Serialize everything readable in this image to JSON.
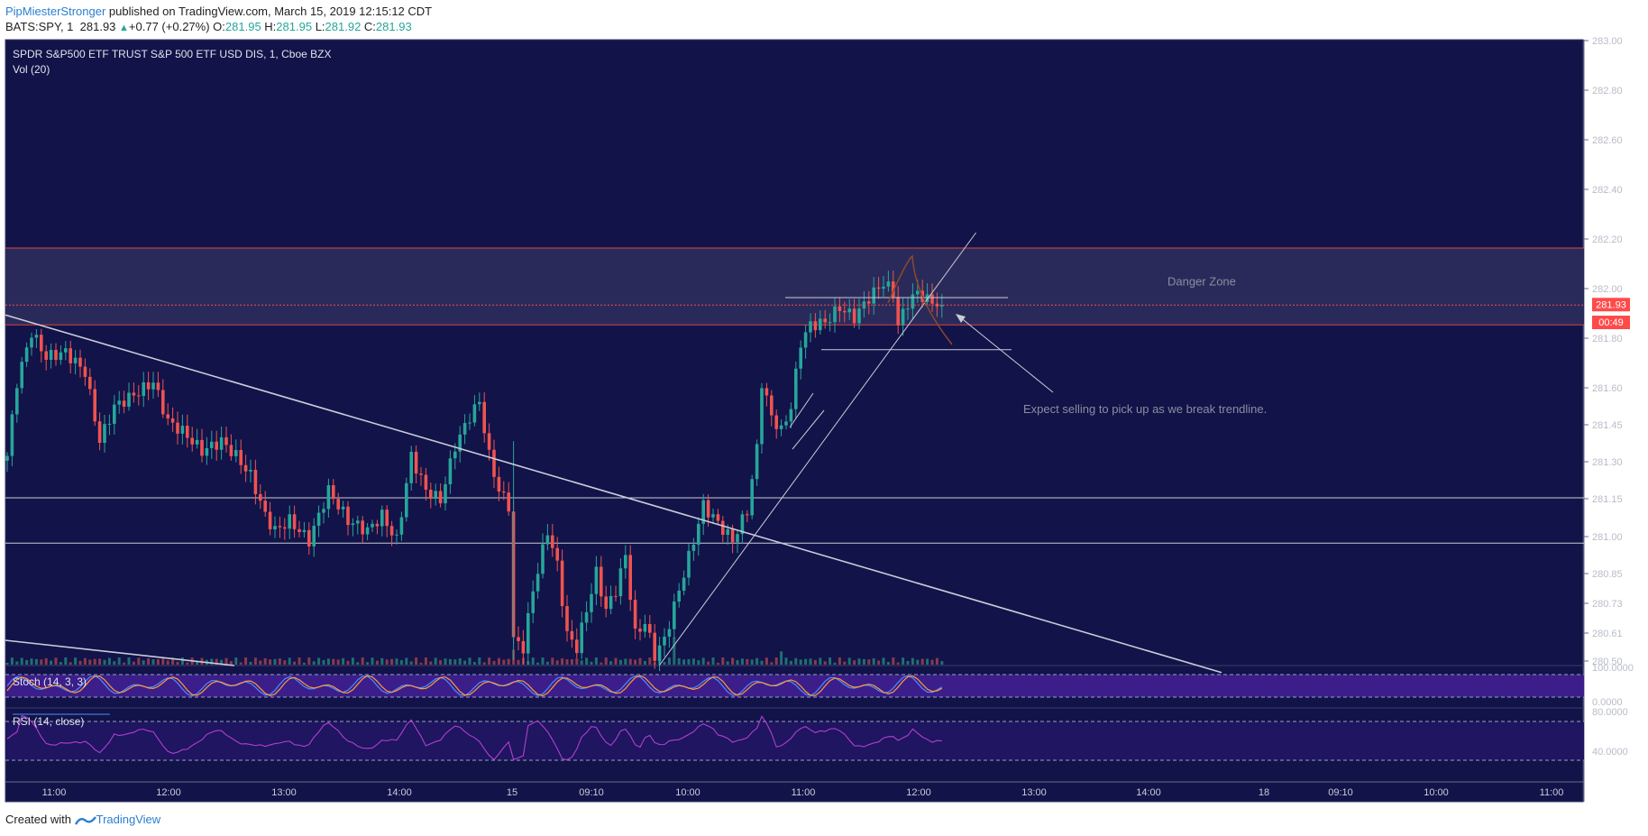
{
  "header": {
    "author": "PipMiesterStronger",
    "published": "published on TradingView.com, March 15, 2019 12:15:12 CDT",
    "symbol": "BATS:SPY, 1",
    "last": "281.93",
    "up_arrow": "▲",
    "change": "+0.77 (+0.27%)",
    "o_label": "O:",
    "o_value": "281.95",
    "h_label": "H:",
    "h_value": "281.95",
    "l_label": "L:",
    "l_value": "281.92",
    "c_label": "C:",
    "c_value": "281.93"
  },
  "chart": {
    "title": "SPDR S&P500 ETF TRUST S&P 500 ETF USD DIS, 1, Cboe BZX",
    "vol_label": "Vol (20)",
    "stoch_label": "Stoch (14, 3, 3)",
    "rsi_label": "RSI (14, close)",
    "danger_zone_label": "Danger Zone",
    "note_label": "Expect selling to pick up as we break trendline.",
    "price_badge": "281.93",
    "countdown_badge": "00:49"
  },
  "colors": {
    "background": "#121349",
    "up_candle": "#26a69a",
    "down_candle": "#ef5350",
    "danger_zone_fill": "#2a2a5a",
    "price_line": "#ff4a4a",
    "stoch_band": "#3b1e8a",
    "rsi_line": "#b23fd0"
  },
  "chart_data": {
    "type": "candlestick",
    "title": "SPDR S&P500 ETF TRUST S&P 500 ETF USD DIS, 1, Cboe BZX",
    "price_ticks": [
      "283.00",
      "282.80",
      "282.60",
      "282.40",
      "282.20",
      "282.00",
      "281.80",
      "281.60",
      "281.45",
      "281.30",
      "281.15",
      "281.00",
      "280.85",
      "280.73",
      "280.61",
      "280.50"
    ],
    "stoch_ticks": [
      "100.0000",
      "0.0000"
    ],
    "rsi_ticks": [
      "80.0000",
      "40.0000"
    ],
    "time_ticks": [
      "11:00",
      "12:00",
      "13:00",
      "14:00",
      "15",
      "09:10",
      "10:00",
      "11:00",
      "12:00",
      "13:00",
      "14:00",
      "18",
      "09:10",
      "10:00",
      "11:00"
    ],
    "last_price": 281.93,
    "danger_zone": [
      281.85,
      282.16
    ],
    "horizontal_levels": [
      281.15,
      280.97
    ],
    "range_box_levels": [
      281.96,
      281.75
    ],
    "descending_trendline": [
      [
        0,
        281.89
      ],
      [
        255,
        280.45
      ]
    ],
    "ascending_trendline": [
      [
        134,
        280.48
      ],
      [
        199,
        282.12
      ]
    ],
    "close_anchors": [
      [
        0,
        281.32
      ],
      [
        2,
        281.62
      ],
      [
        5,
        281.82
      ],
      [
        8,
        281.72
      ],
      [
        12,
        281.74
      ],
      [
        16,
        281.66
      ],
      [
        19,
        281.38
      ],
      [
        22,
        281.52
      ],
      [
        27,
        281.58
      ],
      [
        30,
        281.62
      ],
      [
        33,
        281.46
      ],
      [
        36,
        281.42
      ],
      [
        40,
        281.34
      ],
      [
        44,
        281.38
      ],
      [
        47,
        281.32
      ],
      [
        50,
        281.24
      ],
      [
        53,
        281.08
      ],
      [
        55,
        281.02
      ],
      [
        58,
        281.06
      ],
      [
        62,
        280.98
      ],
      [
        66,
        281.18
      ],
      [
        70,
        281.06
      ],
      [
        74,
        281.02
      ],
      [
        77,
        281.08
      ],
      [
        80,
        280.98
      ],
      [
        83,
        281.32
      ],
      [
        86,
        281.18
      ],
      [
        89,
        281.14
      ],
      [
        92,
        281.36
      ],
      [
        95,
        281.48
      ],
      [
        97,
        281.54
      ],
      [
        99,
        281.32
      ],
      [
        101,
        281.18
      ],
      [
        103,
        281.12
      ],
      [
        104,
        280.58
      ],
      [
        106,
        280.55
      ],
      [
        108,
        280.78
      ],
      [
        111,
        281.02
      ],
      [
        113,
        280.88
      ],
      [
        115,
        280.6
      ],
      [
        117,
        280.55
      ],
      [
        119,
        280.7
      ],
      [
        121,
        280.85
      ],
      [
        123,
        280.7
      ],
      [
        125,
        280.78
      ],
      [
        127,
        280.92
      ],
      [
        129,
        280.6
      ],
      [
        131,
        280.65
      ],
      [
        133,
        280.52
      ],
      [
        135,
        280.58
      ],
      [
        138,
        280.78
      ],
      [
        141,
        280.98
      ],
      [
        143,
        281.12
      ],
      [
        146,
        281.05
      ],
      [
        149,
        280.98
      ],
      [
        152,
        281.1
      ],
      [
        154,
        281.35
      ],
      [
        155,
        281.62
      ],
      [
        157,
        281.48
      ],
      [
        159,
        281.42
      ],
      [
        161,
        281.52
      ],
      [
        163,
        281.78
      ],
      [
        165,
        281.85
      ],
      [
        168,
        281.86
      ],
      [
        171,
        281.92
      ],
      [
        174,
        281.88
      ],
      [
        177,
        281.96
      ],
      [
        180,
        282.02
      ],
      [
        182,
        281.98
      ],
      [
        183,
        281.85
      ],
      [
        185,
        281.94
      ],
      [
        187,
        281.98
      ],
      [
        189,
        281.95
      ],
      [
        192,
        281.93
      ]
    ]
  }
}
